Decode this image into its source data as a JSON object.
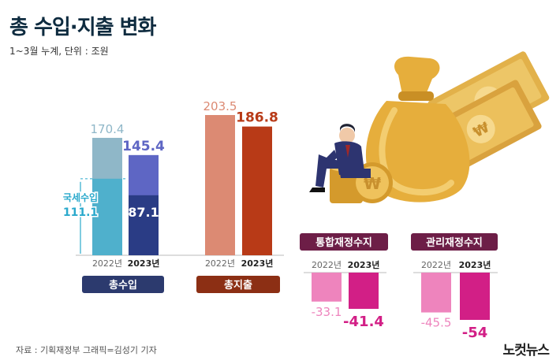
{
  "title": "총 수입·지출 변화",
  "subtitle": "1~3월 누계, 단위 : 조원",
  "source": "자료 : 기획재정부   그래픽=김성기 기자",
  "logo": "노컷뉴스",
  "colors": {
    "revenue_2022": "#8fb7c8",
    "revenue_2023": "#5e66c4",
    "revenue_2022_tax": "#4fb0cc",
    "revenue_2023_tax": "#2a3c85",
    "spend_2022": "#dc8a73",
    "spend_2023": "#b83a17",
    "balance_2022": "#ee84bd",
    "balance_2023": "#d21f86",
    "label_navy": "#2c3a6e",
    "label_brown": "#8c2f14",
    "label_plum": "#6d1e47",
    "tax_accent": "#2aa9cc"
  },
  "chart_data": [
    {
      "type": "bar",
      "group_label": "총수입",
      "categories": [
        "2022년",
        "2023년"
      ],
      "values": [
        170.4,
        145.4
      ],
      "value_labels": [
        "170.4",
        "145.4"
      ],
      "sub_label": "국세수입",
      "sub_values": [
        111.1,
        87.1
      ],
      "sub_value_labels": [
        "111.1",
        "87.1"
      ]
    },
    {
      "type": "bar",
      "group_label": "총지출",
      "categories": [
        "2022년",
        "2023년"
      ],
      "values": [
        203.5,
        186.8
      ],
      "value_labels": [
        "203.5",
        "186.8"
      ]
    },
    {
      "type": "bar",
      "group_label": "통합재정수지",
      "categories": [
        "2022년",
        "2023년"
      ],
      "values": [
        -33.1,
        -41.4
      ],
      "value_labels": [
        "-33.1",
        "-41.4"
      ]
    },
    {
      "type": "bar",
      "group_label": "관리재정수지",
      "categories": [
        "2022년",
        "2023년"
      ],
      "values": [
        -45.5,
        -54
      ],
      "value_labels": [
        "-45.5",
        "-54"
      ]
    }
  ],
  "illustration": [
    "businessman-icon",
    "money-bag-icon",
    "banknote-icon",
    "coin-icon"
  ]
}
